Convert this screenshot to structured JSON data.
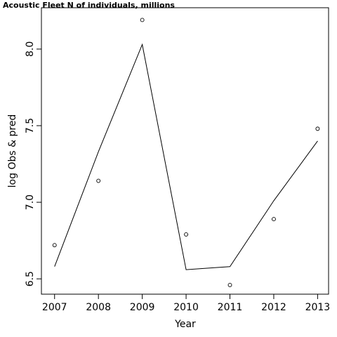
{
  "chart_data": {
    "type": "line",
    "title": "Acoustic Fleet   N of individuals, millions",
    "xlabel": "Year",
    "ylabel": "log Obs & pred",
    "x": [
      2007,
      2008,
      2009,
      2010,
      2011,
      2012,
      2013
    ],
    "xlim": [
      2006.7,
      2013.25
    ],
    "ylim": [
      6.4,
      8.27
    ],
    "xticks": [
      2007,
      2008,
      2009,
      2010,
      2011,
      2012,
      2013
    ],
    "yticks": [
      6.5,
      7.0,
      7.5,
      8.0
    ],
    "ytick_labels": [
      "6.5",
      "7.0",
      "7.5",
      "8.0"
    ],
    "series": [
      {
        "kind": "points",
        "values": [
          6.72,
          7.14,
          8.19,
          6.79,
          6.46,
          6.89,
          7.48
        ]
      },
      {
        "kind": "line",
        "values": [
          6.58,
          7.33,
          8.03,
          6.56,
          6.58,
          7.01,
          7.4
        ]
      }
    ],
    "grid": false,
    "legend": "none"
  }
}
